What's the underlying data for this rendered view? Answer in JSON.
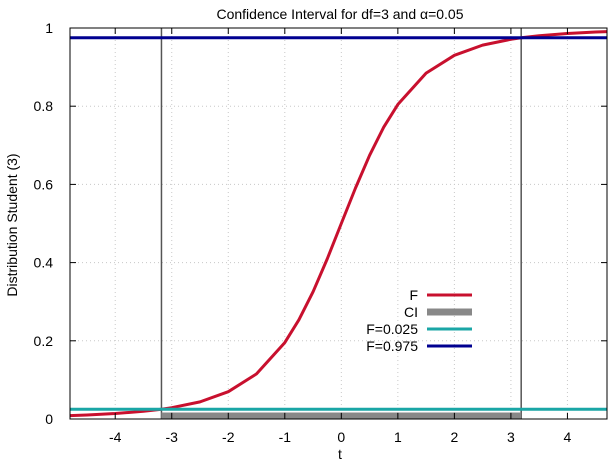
{
  "chart_data": {
    "type": "line",
    "title": "Confidence Interval for df=3 and α=0.05",
    "xlabel": "t",
    "ylabel": "Distribution Student (3)",
    "xlim": [
      -4.8,
      4.7
    ],
    "ylim": [
      0,
      1
    ],
    "x_ticks": [
      -4,
      -3,
      -2,
      -1,
      0,
      1,
      2,
      3,
      4
    ],
    "y_ticks": [
      0,
      0.2,
      0.4,
      0.6,
      0.8,
      1
    ],
    "x_tick_labels": [
      "-4",
      "-3",
      "-2",
      "-1",
      "0",
      "1",
      "2",
      "3",
      "4"
    ],
    "y_tick_labels": [
      "0",
      "0.2",
      "0.4",
      "0.6",
      "0.8",
      "1"
    ],
    "grid": true,
    "legend_position": "lower-right",
    "df": 3,
    "alpha": 0.05,
    "ci": [
      -3.182,
      3.182
    ],
    "series": [
      {
        "name": "F",
        "color": "#c8102e",
        "kind": "curve",
        "x": [
          -4.8,
          -4.5,
          -4.0,
          -3.5,
          -3.182,
          -3.0,
          -2.5,
          -2.0,
          -1.5,
          -1.0,
          -0.75,
          -0.5,
          -0.25,
          0.0,
          0.25,
          0.5,
          0.75,
          1.0,
          1.5,
          2.0,
          2.5,
          3.0,
          3.182,
          3.5,
          4.0,
          4.5,
          4.7
        ],
        "y": [
          0.0086,
          0.0102,
          0.014,
          0.0198,
          0.025,
          0.0288,
          0.0438,
          0.0697,
          0.1153,
          0.1955,
          0.2537,
          0.3257,
          0.4092,
          0.5,
          0.5908,
          0.6743,
          0.7463,
          0.8045,
          0.8847,
          0.9303,
          0.9562,
          0.9712,
          0.975,
          0.9802,
          0.986,
          0.9898,
          0.9909
        ]
      },
      {
        "name": "CI",
        "color": "#888888",
        "kind": "interval",
        "x": [
          -3.182,
          3.182
        ],
        "y": [
          0,
          0
        ]
      },
      {
        "name": "F=0.025",
        "color": "#1aa6a6",
        "kind": "hline",
        "x": [
          -4.8,
          4.7
        ],
        "y": [
          0.025,
          0.025
        ]
      },
      {
        "name": "F=0.975",
        "color": "#000090",
        "kind": "hline",
        "x": [
          -4.8,
          4.7
        ],
        "y": [
          0.975,
          0.975
        ]
      }
    ]
  }
}
